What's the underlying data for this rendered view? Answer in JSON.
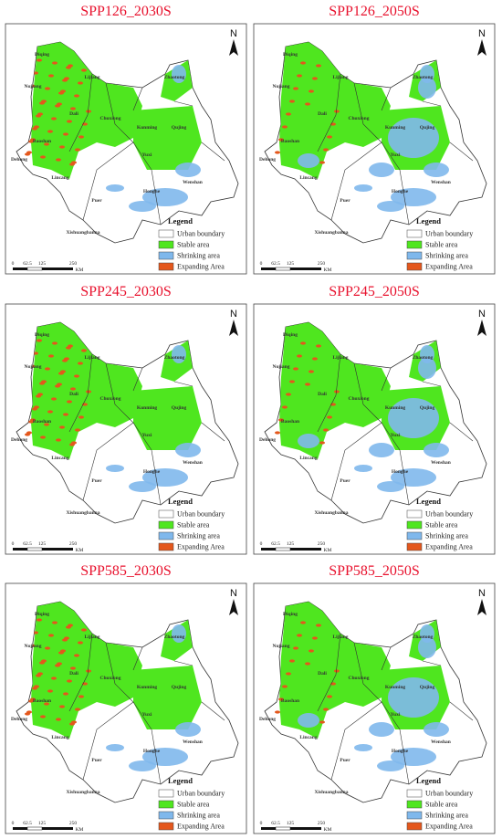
{
  "panels": [
    {
      "title": "SPP126_2030S"
    },
    {
      "title": "SPP126_2050S"
    },
    {
      "title": "SPP245_2030S"
    },
    {
      "title": "SPP245_2050S"
    },
    {
      "title": "SPP585_2030S"
    },
    {
      "title": "SPP585_2050S"
    }
  ],
  "map_labels": [
    "Diqing",
    "Nujiang",
    "Lijiang",
    "Dali",
    "Baoshan",
    "Dehong",
    "Lincang",
    "Chuxiong",
    "Kunming",
    "Qujing",
    "Zhaotong",
    "Yuxi",
    "Honghe",
    "Wenshan",
    "Puer",
    "Xishuangbanna"
  ],
  "north": "N",
  "scale": {
    "labels": [
      "0",
      "62.5",
      "125",
      "250"
    ],
    "unit": "KM"
  },
  "legend": {
    "title": "Legend",
    "items": [
      "Urban boundary",
      "Stable area",
      "Shrinking area",
      "Expanding Area"
    ]
  }
}
